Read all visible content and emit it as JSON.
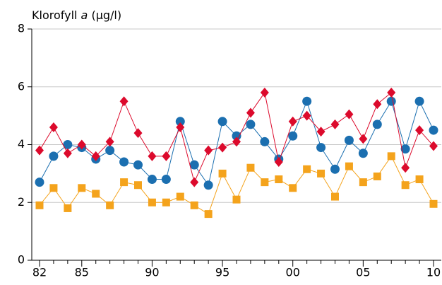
{
  "chart_data": {
    "type": "line",
    "title_parts": [
      "Klorofyll",
      "a",
      "(µg/l)"
    ],
    "categories": [
      "82",
      null,
      null,
      "85",
      null,
      null,
      null,
      null,
      "90",
      null,
      null,
      null,
      null,
      "95",
      null,
      null,
      null,
      null,
      "00",
      null,
      null,
      null,
      null,
      "05",
      null,
      null,
      null,
      null,
      "10"
    ],
    "series": [
      {
        "color": "#1b6fb0",
        "marker": "circle",
        "values": [
          2.7,
          3.6,
          4.0,
          3.9,
          3.5,
          3.8,
          3.4,
          3.3,
          2.8,
          2.8,
          4.8,
          3.3,
          2.6,
          4.8,
          4.3,
          4.7,
          4.1,
          3.5,
          4.3,
          5.5,
          3.9,
          3.15,
          4.15,
          3.7,
          4.7,
          5.5,
          3.85,
          5.5,
          4.5
        ]
      },
      {
        "color": "#dc0a2c",
        "marker": "diamond",
        "values": [
          3.8,
          4.6,
          3.7,
          4.0,
          3.6,
          4.1,
          5.5,
          4.4,
          3.6,
          3.6,
          4.6,
          2.7,
          3.8,
          3.9,
          4.1,
          5.1,
          5.8,
          3.4,
          4.8,
          5.0,
          4.45,
          4.7,
          5.05,
          4.2,
          5.4,
          5.8,
          3.2,
          4.5,
          3.95
        ]
      },
      {
        "color": "#f4a31c",
        "marker": "square",
        "values": [
          1.9,
          2.5,
          1.8,
          2.5,
          2.3,
          1.9,
          2.7,
          2.6,
          2.0,
          2.0,
          2.2,
          1.9,
          1.6,
          3.0,
          2.1,
          3.2,
          2.7,
          2.8,
          2.5,
          3.15,
          3.0,
          2.2,
          3.25,
          2.7,
          2.9,
          3.6,
          2.6,
          2.8,
          1.95
        ]
      }
    ],
    "ylim": [
      0,
      8
    ],
    "yticks": [
      0,
      2,
      4,
      6,
      8
    ],
    "grid": true
  }
}
